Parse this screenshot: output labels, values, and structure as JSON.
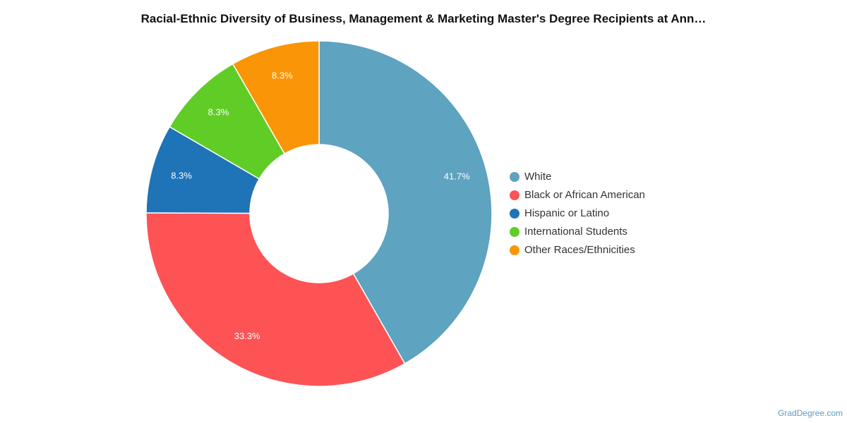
{
  "chart_data": {
    "type": "pie",
    "donut": true,
    "title": "Racial-Ethnic Diversity of Business, Management & Marketing Master's Degree Recipients at Ann…",
    "categories": [
      "White",
      "Black or African American",
      "Hispanic or Latino",
      "International Students",
      "Other Races/Ethnicities"
    ],
    "values": [
      41.7,
      33.3,
      8.3,
      8.3,
      8.3
    ],
    "value_labels": [
      "41.7%",
      "33.3%",
      "8.3%",
      "8.3%",
      "8.3%"
    ],
    "colors": [
      "#5ea3c0",
      "#fd5355",
      "#1f73b7",
      "#60cd26",
      "#f99506"
    ],
    "legend_position": "right"
  },
  "credit": "GradDegree.com"
}
